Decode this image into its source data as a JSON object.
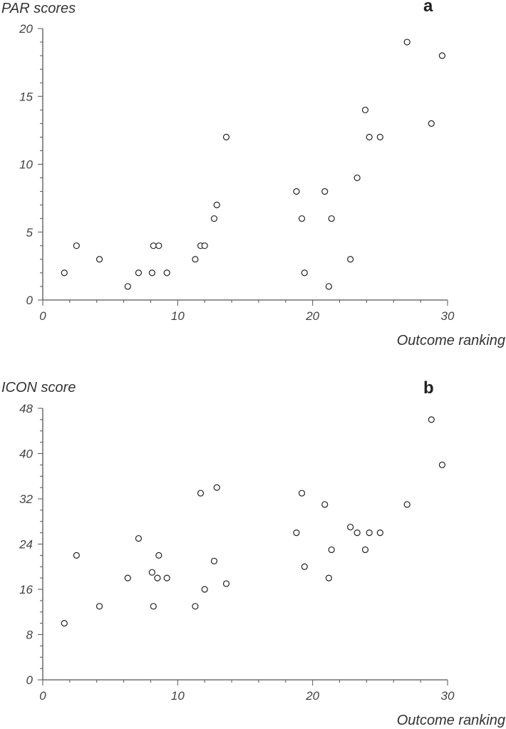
{
  "chart_data": [
    {
      "type": "scatter",
      "panel_label": "a",
      "ylabel": "PAR scores",
      "xlabel": "Outcome ranking",
      "xlim": [
        0,
        30
      ],
      "ylim": [
        0,
        20
      ],
      "xticks": [
        0,
        10,
        20,
        30
      ],
      "yticks": [
        0,
        5,
        10,
        15,
        20
      ],
      "xtick_labels": [
        "0",
        "10",
        "20",
        "30"
      ],
      "ytick_labels": [
        "0",
        "5",
        "10",
        "15",
        "20"
      ],
      "grid": false,
      "points": [
        {
          "x": 1.6,
          "y": 2
        },
        {
          "x": 2.5,
          "y": 4
        },
        {
          "x": 4.2,
          "y": 3
        },
        {
          "x": 6.3,
          "y": 1
        },
        {
          "x": 7.1,
          "y": 2
        },
        {
          "x": 8.1,
          "y": 2
        },
        {
          "x": 8.2,
          "y": 4
        },
        {
          "x": 8.6,
          "y": 4
        },
        {
          "x": 9.2,
          "y": 2
        },
        {
          "x": 11.3,
          "y": 3
        },
        {
          "x": 11.7,
          "y": 4
        },
        {
          "x": 12.0,
          "y": 4
        },
        {
          "x": 12.7,
          "y": 6
        },
        {
          "x": 12.9,
          "y": 7
        },
        {
          "x": 13.6,
          "y": 12
        },
        {
          "x": 18.8,
          "y": 8
        },
        {
          "x": 19.2,
          "y": 6
        },
        {
          "x": 19.4,
          "y": 2
        },
        {
          "x": 20.9,
          "y": 8
        },
        {
          "x": 21.2,
          "y": 1
        },
        {
          "x": 21.4,
          "y": 6
        },
        {
          "x": 22.8,
          "y": 3
        },
        {
          "x": 23.3,
          "y": 9
        },
        {
          "x": 23.9,
          "y": 14
        },
        {
          "x": 24.2,
          "y": 12
        },
        {
          "x": 25.0,
          "y": 12
        },
        {
          "x": 27.0,
          "y": 19
        },
        {
          "x": 28.8,
          "y": 13
        },
        {
          "x": 29.6,
          "y": 18
        }
      ]
    },
    {
      "type": "scatter",
      "panel_label": "b",
      "ylabel": "ICON  score",
      "xlabel": "Outcome ranking",
      "xlim": [
        0,
        30
      ],
      "ylim": [
        0,
        48
      ],
      "xticks": [
        0,
        10,
        20,
        30
      ],
      "yticks": [
        0,
        8,
        16,
        24,
        32,
        40,
        48
      ],
      "xtick_labels": [
        "0",
        "10",
        "20",
        "30"
      ],
      "ytick_labels": [
        "0",
        "8",
        "16",
        "24",
        "32",
        "40",
        "48"
      ],
      "grid": false,
      "points": [
        {
          "x": 1.6,
          "y": 10
        },
        {
          "x": 2.5,
          "y": 22
        },
        {
          "x": 4.2,
          "y": 13
        },
        {
          "x": 6.3,
          "y": 18
        },
        {
          "x": 7.1,
          "y": 25
        },
        {
          "x": 8.1,
          "y": 19
        },
        {
          "x": 8.2,
          "y": 13
        },
        {
          "x": 8.5,
          "y": 18
        },
        {
          "x": 8.6,
          "y": 22
        },
        {
          "x": 9.2,
          "y": 18
        },
        {
          "x": 11.3,
          "y": 13
        },
        {
          "x": 11.7,
          "y": 33
        },
        {
          "x": 12.0,
          "y": 16
        },
        {
          "x": 12.7,
          "y": 21
        },
        {
          "x": 12.9,
          "y": 34
        },
        {
          "x": 13.6,
          "y": 17
        },
        {
          "x": 18.8,
          "y": 26
        },
        {
          "x": 19.2,
          "y": 33
        },
        {
          "x": 19.4,
          "y": 20
        },
        {
          "x": 20.9,
          "y": 31
        },
        {
          "x": 21.2,
          "y": 18
        },
        {
          "x": 21.4,
          "y": 23
        },
        {
          "x": 22.8,
          "y": 27
        },
        {
          "x": 23.3,
          "y": 26
        },
        {
          "x": 23.9,
          "y": 23
        },
        {
          "x": 24.2,
          "y": 26
        },
        {
          "x": 25.0,
          "y": 26
        },
        {
          "x": 27.0,
          "y": 31
        },
        {
          "x": 28.8,
          "y": 46
        },
        {
          "x": 29.6,
          "y": 38
        }
      ]
    }
  ]
}
